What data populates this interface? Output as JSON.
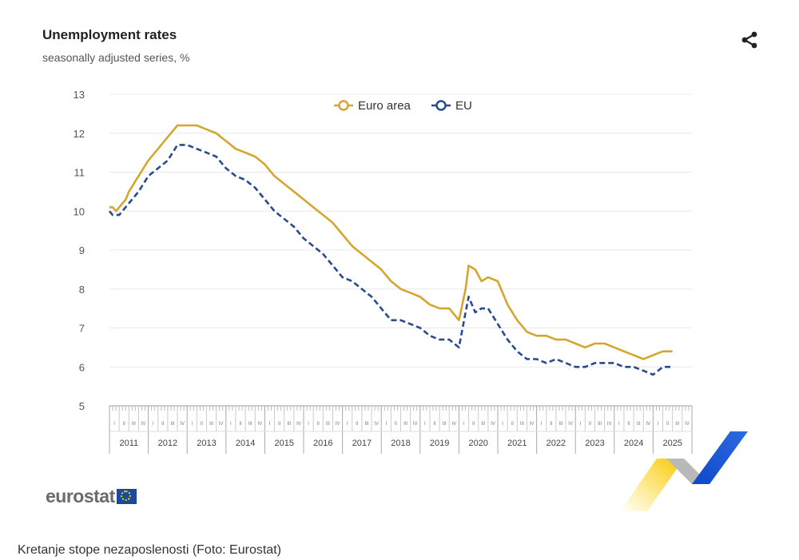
{
  "header": {
    "title": "Unemployment rates",
    "subtitle": "seasonally adjusted series, %"
  },
  "logo": {
    "text": "eurostat"
  },
  "caption": "Kretanje stope nezaposlenosti (Foto: Eurostat)",
  "colors": {
    "euro_area": "#d4a72c",
    "eu": "#2a4a8f",
    "grid": "#e8e8e8",
    "axis": "#9a9a9a"
  },
  "chart_data": {
    "type": "line",
    "title": "Unemployment rates",
    "subtitle": "seasonally adjusted series, %",
    "xlabel": "",
    "ylabel": "",
    "ylim": [
      5,
      13
    ],
    "yticks": [
      5,
      6,
      7,
      8,
      9,
      10,
      11,
      12,
      13
    ],
    "years": [
      "2011",
      "2012",
      "2013",
      "2014",
      "2015",
      "2016",
      "2017",
      "2018",
      "2019",
      "2020",
      "2021",
      "2022",
      "2023",
      "2024",
      "2025"
    ],
    "quarters": [
      "I",
      "II",
      "III",
      "IV"
    ],
    "legend": {
      "position": "top-center",
      "entries": [
        "Euro area",
        "EU"
      ]
    },
    "series": [
      {
        "name": "Euro area",
        "style": "solid",
        "x": [
          2011.0,
          2011.08,
          2011.17,
          2011.25,
          2011.42,
          2011.5,
          2011.75,
          2012.0,
          2012.25,
          2012.5,
          2012.75,
          2013.0,
          2013.08,
          2013.25,
          2013.5,
          2013.75,
          2014.0,
          2014.25,
          2014.5,
          2014.75,
          2015.0,
          2015.25,
          2015.5,
          2015.75,
          2016.0,
          2016.25,
          2016.5,
          2016.75,
          2017.0,
          2017.25,
          2017.5,
          2017.75,
          2018.0,
          2018.25,
          2018.5,
          2018.75,
          2019.0,
          2019.25,
          2019.5,
          2019.75,
          2020.0,
          2020.17,
          2020.25,
          2020.42,
          2020.58,
          2020.75,
          2021.0,
          2021.25,
          2021.5,
          2021.75,
          2022.0,
          2022.25,
          2022.5,
          2022.75,
          2023.0,
          2023.25,
          2023.5,
          2023.75,
          2024.0,
          2024.25,
          2024.5,
          2024.75,
          2025.0,
          2025.25,
          2025.5
        ],
        "values": [
          10.1,
          10.1,
          10.0,
          10.1,
          10.3,
          10.5,
          10.9,
          11.3,
          11.6,
          11.9,
          12.2,
          12.2,
          12.2,
          12.2,
          12.1,
          12.0,
          11.8,
          11.6,
          11.5,
          11.4,
          11.2,
          10.9,
          10.7,
          10.5,
          10.3,
          10.1,
          9.9,
          9.7,
          9.4,
          9.1,
          8.9,
          8.7,
          8.5,
          8.2,
          8.0,
          7.9,
          7.8,
          7.6,
          7.5,
          7.5,
          7.2,
          8.0,
          8.6,
          8.5,
          8.2,
          8.3,
          8.2,
          7.6,
          7.2,
          6.9,
          6.8,
          6.8,
          6.7,
          6.7,
          6.6,
          6.5,
          6.6,
          6.6,
          6.5,
          6.4,
          6.3,
          6.2,
          6.3,
          6.4,
          6.4
        ]
      },
      {
        "name": "EU",
        "style": "dashed",
        "x": [
          2011.0,
          2011.08,
          2011.25,
          2011.5,
          2011.75,
          2012.0,
          2012.25,
          2012.5,
          2012.75,
          2013.0,
          2013.25,
          2013.5,
          2013.75,
          2014.0,
          2014.25,
          2014.5,
          2014.75,
          2015.0,
          2015.25,
          2015.5,
          2015.75,
          2016.0,
          2016.25,
          2016.5,
          2016.75,
          2017.0,
          2017.25,
          2017.5,
          2017.75,
          2018.0,
          2018.25,
          2018.5,
          2018.75,
          2019.0,
          2019.25,
          2019.5,
          2019.75,
          2020.0,
          2020.17,
          2020.25,
          2020.42,
          2020.58,
          2020.75,
          2021.0,
          2021.25,
          2021.5,
          2021.75,
          2022.0,
          2022.25,
          2022.5,
          2022.75,
          2023.0,
          2023.25,
          2023.5,
          2023.75,
          2024.0,
          2024.25,
          2024.5,
          2024.75,
          2025.0,
          2025.25,
          2025.5
        ],
        "values": [
          10.0,
          9.9,
          9.9,
          10.2,
          10.5,
          10.9,
          11.1,
          11.3,
          11.7,
          11.7,
          11.6,
          11.5,
          11.4,
          11.1,
          10.9,
          10.8,
          10.6,
          10.3,
          10.0,
          9.8,
          9.6,
          9.3,
          9.1,
          8.9,
          8.6,
          8.3,
          8.2,
          8.0,
          7.8,
          7.5,
          7.2,
          7.2,
          7.1,
          7.0,
          6.8,
          6.7,
          6.7,
          6.5,
          7.4,
          7.8,
          7.4,
          7.5,
          7.5,
          7.1,
          6.7,
          6.4,
          6.2,
          6.2,
          6.1,
          6.2,
          6.1,
          6.0,
          6.0,
          6.1,
          6.1,
          6.1,
          6.0,
          6.0,
          5.9,
          5.8,
          6.0,
          6.0
        ]
      }
    ]
  }
}
